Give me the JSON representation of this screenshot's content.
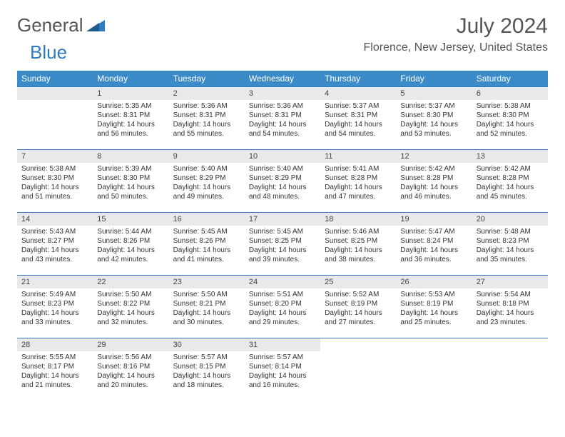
{
  "brand": {
    "name1": "General",
    "name2": "Blue"
  },
  "title": "July 2024",
  "location": "Florence, New Jersey, United States",
  "colors": {
    "header_bg": "#3b8bc9",
    "accent": "#2e7bbf",
    "daynum_bg": "#e9e9e9"
  },
  "weekdays": [
    "Sunday",
    "Monday",
    "Tuesday",
    "Wednesday",
    "Thursday",
    "Friday",
    "Saturday"
  ],
  "weeks": [
    [
      null,
      {
        "n": "1",
        "sr": "Sunrise: 5:35 AM",
        "ss": "Sunset: 8:31 PM",
        "dl": "Daylight: 14 hours and 56 minutes."
      },
      {
        "n": "2",
        "sr": "Sunrise: 5:36 AM",
        "ss": "Sunset: 8:31 PM",
        "dl": "Daylight: 14 hours and 55 minutes."
      },
      {
        "n": "3",
        "sr": "Sunrise: 5:36 AM",
        "ss": "Sunset: 8:31 PM",
        "dl": "Daylight: 14 hours and 54 minutes."
      },
      {
        "n": "4",
        "sr": "Sunrise: 5:37 AM",
        "ss": "Sunset: 8:31 PM",
        "dl": "Daylight: 14 hours and 54 minutes."
      },
      {
        "n": "5",
        "sr": "Sunrise: 5:37 AM",
        "ss": "Sunset: 8:30 PM",
        "dl": "Daylight: 14 hours and 53 minutes."
      },
      {
        "n": "6",
        "sr": "Sunrise: 5:38 AM",
        "ss": "Sunset: 8:30 PM",
        "dl": "Daylight: 14 hours and 52 minutes."
      }
    ],
    [
      {
        "n": "7",
        "sr": "Sunrise: 5:38 AM",
        "ss": "Sunset: 8:30 PM",
        "dl": "Daylight: 14 hours and 51 minutes."
      },
      {
        "n": "8",
        "sr": "Sunrise: 5:39 AM",
        "ss": "Sunset: 8:30 PM",
        "dl": "Daylight: 14 hours and 50 minutes."
      },
      {
        "n": "9",
        "sr": "Sunrise: 5:40 AM",
        "ss": "Sunset: 8:29 PM",
        "dl": "Daylight: 14 hours and 49 minutes."
      },
      {
        "n": "10",
        "sr": "Sunrise: 5:40 AM",
        "ss": "Sunset: 8:29 PM",
        "dl": "Daylight: 14 hours and 48 minutes."
      },
      {
        "n": "11",
        "sr": "Sunrise: 5:41 AM",
        "ss": "Sunset: 8:28 PM",
        "dl": "Daylight: 14 hours and 47 minutes."
      },
      {
        "n": "12",
        "sr": "Sunrise: 5:42 AM",
        "ss": "Sunset: 8:28 PM",
        "dl": "Daylight: 14 hours and 46 minutes."
      },
      {
        "n": "13",
        "sr": "Sunrise: 5:42 AM",
        "ss": "Sunset: 8:28 PM",
        "dl": "Daylight: 14 hours and 45 minutes."
      }
    ],
    [
      {
        "n": "14",
        "sr": "Sunrise: 5:43 AM",
        "ss": "Sunset: 8:27 PM",
        "dl": "Daylight: 14 hours and 43 minutes."
      },
      {
        "n": "15",
        "sr": "Sunrise: 5:44 AM",
        "ss": "Sunset: 8:26 PM",
        "dl": "Daylight: 14 hours and 42 minutes."
      },
      {
        "n": "16",
        "sr": "Sunrise: 5:45 AM",
        "ss": "Sunset: 8:26 PM",
        "dl": "Daylight: 14 hours and 41 minutes."
      },
      {
        "n": "17",
        "sr": "Sunrise: 5:45 AM",
        "ss": "Sunset: 8:25 PM",
        "dl": "Daylight: 14 hours and 39 minutes."
      },
      {
        "n": "18",
        "sr": "Sunrise: 5:46 AM",
        "ss": "Sunset: 8:25 PM",
        "dl": "Daylight: 14 hours and 38 minutes."
      },
      {
        "n": "19",
        "sr": "Sunrise: 5:47 AM",
        "ss": "Sunset: 8:24 PM",
        "dl": "Daylight: 14 hours and 36 minutes."
      },
      {
        "n": "20",
        "sr": "Sunrise: 5:48 AM",
        "ss": "Sunset: 8:23 PM",
        "dl": "Daylight: 14 hours and 35 minutes."
      }
    ],
    [
      {
        "n": "21",
        "sr": "Sunrise: 5:49 AM",
        "ss": "Sunset: 8:23 PM",
        "dl": "Daylight: 14 hours and 33 minutes."
      },
      {
        "n": "22",
        "sr": "Sunrise: 5:50 AM",
        "ss": "Sunset: 8:22 PM",
        "dl": "Daylight: 14 hours and 32 minutes."
      },
      {
        "n": "23",
        "sr": "Sunrise: 5:50 AM",
        "ss": "Sunset: 8:21 PM",
        "dl": "Daylight: 14 hours and 30 minutes."
      },
      {
        "n": "24",
        "sr": "Sunrise: 5:51 AM",
        "ss": "Sunset: 8:20 PM",
        "dl": "Daylight: 14 hours and 29 minutes."
      },
      {
        "n": "25",
        "sr": "Sunrise: 5:52 AM",
        "ss": "Sunset: 8:19 PM",
        "dl": "Daylight: 14 hours and 27 minutes."
      },
      {
        "n": "26",
        "sr": "Sunrise: 5:53 AM",
        "ss": "Sunset: 8:19 PM",
        "dl": "Daylight: 14 hours and 25 minutes."
      },
      {
        "n": "27",
        "sr": "Sunrise: 5:54 AM",
        "ss": "Sunset: 8:18 PM",
        "dl": "Daylight: 14 hours and 23 minutes."
      }
    ],
    [
      {
        "n": "28",
        "sr": "Sunrise: 5:55 AM",
        "ss": "Sunset: 8:17 PM",
        "dl": "Daylight: 14 hours and 21 minutes."
      },
      {
        "n": "29",
        "sr": "Sunrise: 5:56 AM",
        "ss": "Sunset: 8:16 PM",
        "dl": "Daylight: 14 hours and 20 minutes."
      },
      {
        "n": "30",
        "sr": "Sunrise: 5:57 AM",
        "ss": "Sunset: 8:15 PM",
        "dl": "Daylight: 14 hours and 18 minutes."
      },
      {
        "n": "31",
        "sr": "Sunrise: 5:57 AM",
        "ss": "Sunset: 8:14 PM",
        "dl": "Daylight: 14 hours and 16 minutes."
      },
      null,
      null,
      null
    ]
  ]
}
